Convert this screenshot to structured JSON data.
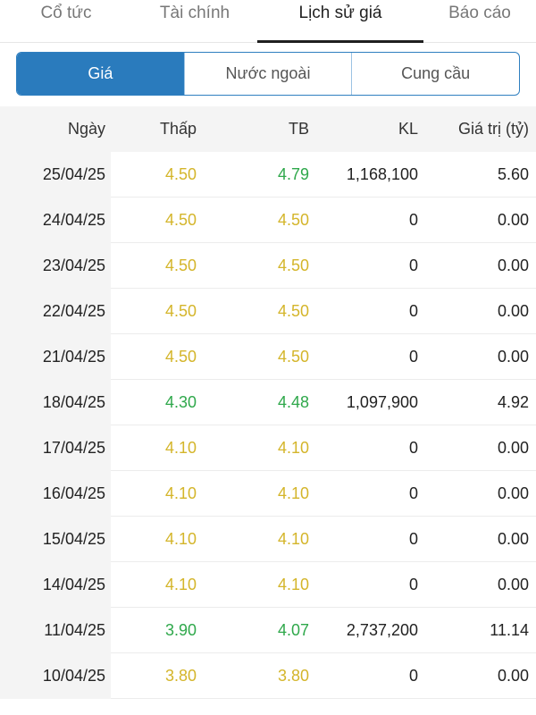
{
  "top_tabs": [
    {
      "label": "Cổ tức",
      "active": false
    },
    {
      "label": "Tài chính",
      "active": false
    },
    {
      "label": "Lịch sử giá",
      "active": true
    },
    {
      "label": "Báo cáo",
      "active": false
    }
  ],
  "segments": [
    {
      "label": "Giá",
      "active": true
    },
    {
      "label": "Nước ngoài",
      "active": false
    },
    {
      "label": "Cung cầu",
      "active": false
    }
  ],
  "colors": {
    "yellow": "#d4b52a",
    "green": "#2fa84b",
    "accent": "#2a7bbd"
  },
  "table": {
    "headers": {
      "date": "Ngày",
      "low": "Thấp",
      "avg": "TB",
      "volume": "KL",
      "value": "Giá trị (tỷ)"
    },
    "rows": [
      {
        "date": "25/04/25",
        "low": "4.50",
        "low_color": "yellow",
        "avg": "4.79",
        "avg_color": "green",
        "volume": "1,168,100",
        "value": "5.60"
      },
      {
        "date": "24/04/25",
        "low": "4.50",
        "low_color": "yellow",
        "avg": "4.50",
        "avg_color": "yellow",
        "volume": "0",
        "value": "0.00"
      },
      {
        "date": "23/04/25",
        "low": "4.50",
        "low_color": "yellow",
        "avg": "4.50",
        "avg_color": "yellow",
        "volume": "0",
        "value": "0.00"
      },
      {
        "date": "22/04/25",
        "low": "4.50",
        "low_color": "yellow",
        "avg": "4.50",
        "avg_color": "yellow",
        "volume": "0",
        "value": "0.00"
      },
      {
        "date": "21/04/25",
        "low": "4.50",
        "low_color": "yellow",
        "avg": "4.50",
        "avg_color": "yellow",
        "volume": "0",
        "value": "0.00"
      },
      {
        "date": "18/04/25",
        "low": "4.30",
        "low_color": "green",
        "avg": "4.48",
        "avg_color": "green",
        "volume": "1,097,900",
        "value": "4.92"
      },
      {
        "date": "17/04/25",
        "low": "4.10",
        "low_color": "yellow",
        "avg": "4.10",
        "avg_color": "yellow",
        "volume": "0",
        "value": "0.00"
      },
      {
        "date": "16/04/25",
        "low": "4.10",
        "low_color": "yellow",
        "avg": "4.10",
        "avg_color": "yellow",
        "volume": "0",
        "value": "0.00"
      },
      {
        "date": "15/04/25",
        "low": "4.10",
        "low_color": "yellow",
        "avg": "4.10",
        "avg_color": "yellow",
        "volume": "0",
        "value": "0.00"
      },
      {
        "date": "14/04/25",
        "low": "4.10",
        "low_color": "yellow",
        "avg": "4.10",
        "avg_color": "yellow",
        "volume": "0",
        "value": "0.00"
      },
      {
        "date": "11/04/25",
        "low": "3.90",
        "low_color": "green",
        "avg": "4.07",
        "avg_color": "green",
        "volume": "2,737,200",
        "value": "11.14"
      },
      {
        "date": "10/04/25",
        "low": "3.80",
        "low_color": "yellow",
        "avg": "3.80",
        "avg_color": "yellow",
        "volume": "0",
        "value": "0.00"
      }
    ]
  }
}
